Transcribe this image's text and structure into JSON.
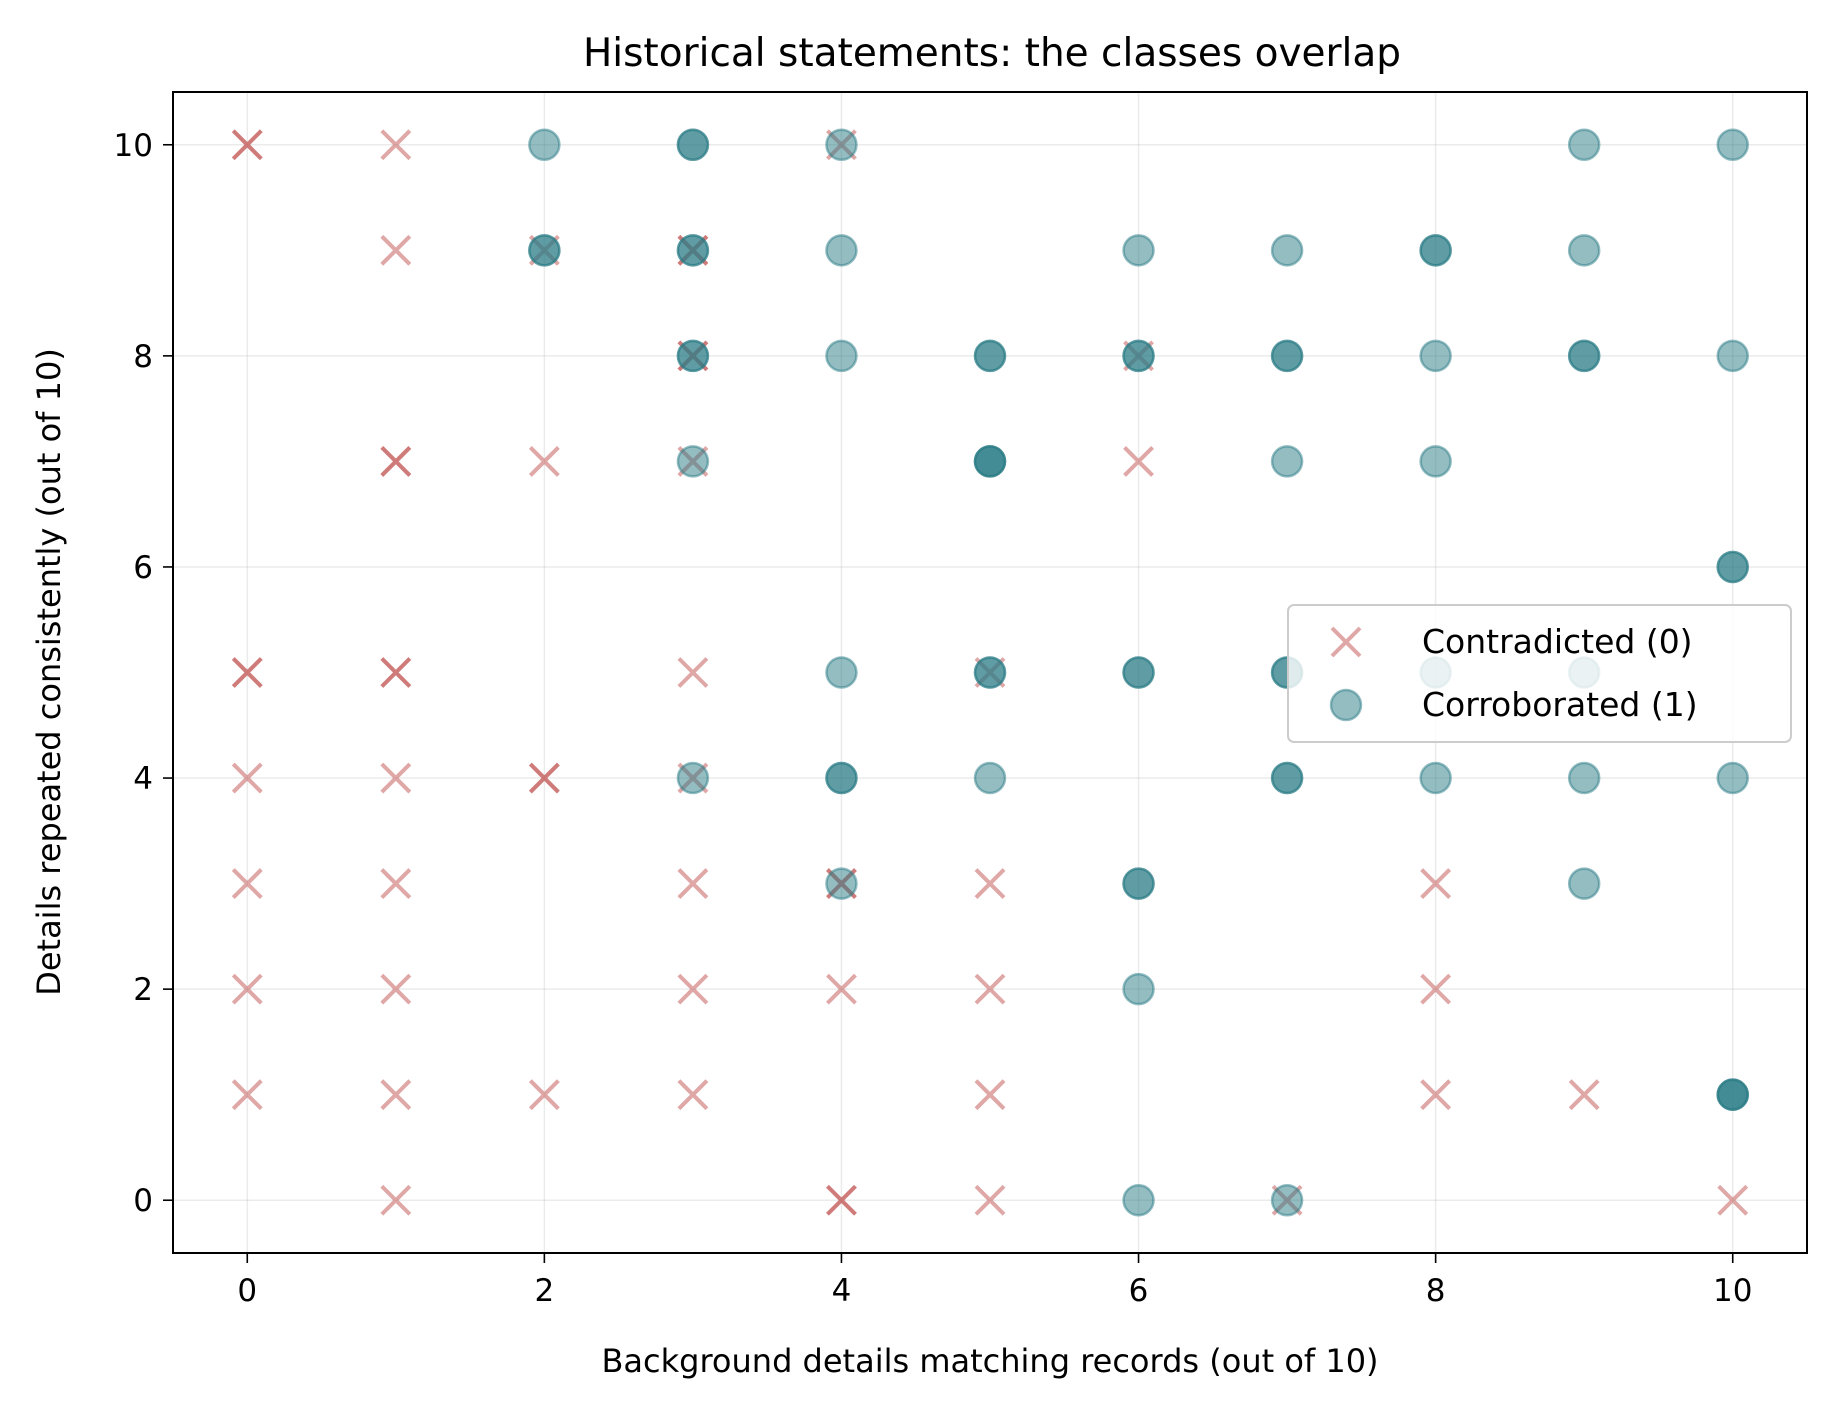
{
  "chart_data": {
    "type": "scatter",
    "title": "Historical statements: the classes overlap",
    "xlabel": "Background details matching records (out of 10)",
    "ylabel": "Details repeated consistently (out of 10)",
    "xlim": [
      -0.5,
      10.5
    ],
    "ylim": [
      -0.5,
      10.5
    ],
    "xticks": [
      0,
      2,
      4,
      6,
      8,
      10
    ],
    "yticks": [
      0,
      2,
      4,
      6,
      8,
      10
    ],
    "grid": true,
    "legend_position": "center-right",
    "series": [
      {
        "name": "Contradicted (0)",
        "marker": "x",
        "color": "#c0504d",
        "points": [
          [
            0,
            10
          ],
          [
            0,
            10
          ],
          [
            1,
            10
          ],
          [
            4,
            10
          ],
          [
            1,
            9
          ],
          [
            2,
            9
          ],
          [
            3,
            9
          ],
          [
            3,
            9
          ],
          [
            3,
            8
          ],
          [
            3,
            8
          ],
          [
            6,
            8
          ],
          [
            1,
            7
          ],
          [
            1,
            7
          ],
          [
            2,
            7
          ],
          [
            3,
            7
          ],
          [
            6,
            7
          ],
          [
            0,
            5
          ],
          [
            0,
            5
          ],
          [
            1,
            5
          ],
          [
            1,
            5
          ],
          [
            3,
            5
          ],
          [
            5,
            5
          ],
          [
            0,
            4
          ],
          [
            1,
            4
          ],
          [
            2,
            4
          ],
          [
            2,
            4
          ],
          [
            3,
            4
          ],
          [
            0,
            3
          ],
          [
            1,
            3
          ],
          [
            3,
            3
          ],
          [
            4,
            3
          ],
          [
            4,
            3
          ],
          [
            5,
            3
          ],
          [
            8,
            3
          ],
          [
            0,
            2
          ],
          [
            1,
            2
          ],
          [
            3,
            2
          ],
          [
            4,
            2
          ],
          [
            5,
            2
          ],
          [
            8,
            2
          ],
          [
            0,
            1
          ],
          [
            1,
            1
          ],
          [
            2,
            1
          ],
          [
            3,
            1
          ],
          [
            5,
            1
          ],
          [
            8,
            1
          ],
          [
            9,
            1
          ],
          [
            1,
            0
          ],
          [
            4,
            0
          ],
          [
            4,
            0
          ],
          [
            5,
            0
          ],
          [
            7,
            0
          ],
          [
            10,
            0
          ]
        ]
      },
      {
        "name": "Corroborated (1)",
        "marker": "o",
        "color": "#2a7b86",
        "points": [
          [
            2,
            10
          ],
          [
            3,
            10
          ],
          [
            3,
            10
          ],
          [
            4,
            10
          ],
          [
            9,
            10
          ],
          [
            10,
            10
          ],
          [
            2,
            9
          ],
          [
            2,
            9
          ],
          [
            3,
            9
          ],
          [
            3,
            9
          ],
          [
            4,
            9
          ],
          [
            6,
            9
          ],
          [
            7,
            9
          ],
          [
            8,
            9
          ],
          [
            8,
            9
          ],
          [
            9,
            9
          ],
          [
            3,
            8
          ],
          [
            3,
            8
          ],
          [
            4,
            8
          ],
          [
            5,
            8
          ],
          [
            5,
            8
          ],
          [
            6,
            8
          ],
          [
            6,
            8
          ],
          [
            7,
            8
          ],
          [
            7,
            8
          ],
          [
            8,
            8
          ],
          [
            9,
            8
          ],
          [
            9,
            8
          ],
          [
            10,
            8
          ],
          [
            3,
            7
          ],
          [
            5,
            7
          ],
          [
            5,
            7
          ],
          [
            5,
            7
          ],
          [
            7,
            7
          ],
          [
            8,
            7
          ],
          [
            10,
            6
          ],
          [
            10,
            6
          ],
          [
            4,
            5
          ],
          [
            5,
            5
          ],
          [
            5,
            5
          ],
          [
            6,
            5
          ],
          [
            6,
            5
          ],
          [
            7,
            5
          ],
          [
            7,
            5
          ],
          [
            8,
            5
          ],
          [
            9,
            5
          ],
          [
            3,
            4
          ],
          [
            4,
            4
          ],
          [
            4,
            4
          ],
          [
            5,
            4
          ],
          [
            7,
            4
          ],
          [
            7,
            4
          ],
          [
            8,
            4
          ],
          [
            9,
            4
          ],
          [
            10,
            4
          ],
          [
            4,
            3
          ],
          [
            6,
            3
          ],
          [
            6,
            3
          ],
          [
            9,
            3
          ],
          [
            6,
            2
          ],
          [
            10,
            1
          ],
          [
            10,
            1
          ],
          [
            10,
            1
          ],
          [
            6,
            0
          ],
          [
            7,
            0
          ]
        ]
      }
    ]
  }
}
